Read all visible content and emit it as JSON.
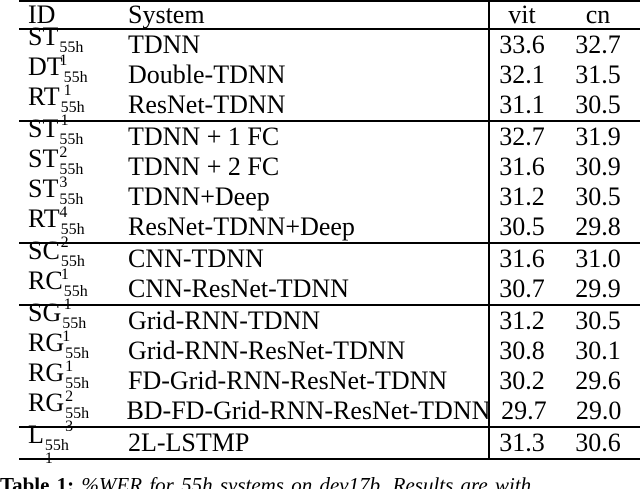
{
  "table": {
    "headers": {
      "id": "ID",
      "system": "System",
      "vit": "vit",
      "cn": "cn"
    },
    "groups": [
      {
        "rows": [
          {
            "id_base": "ST",
            "id_sup": "55h",
            "id_sub": "1",
            "system": "TDNN",
            "vit": "33.6",
            "cn": "32.7"
          },
          {
            "id_base": "DT",
            "id_sup": "55h",
            "id_sub": "1",
            "system": "Double-TDNN",
            "vit": "32.1",
            "cn": "31.5"
          },
          {
            "id_base": "RT",
            "id_sup": "55h",
            "id_sub": "1",
            "system": "ResNet-TDNN",
            "vit": "31.1",
            "cn": "30.5"
          }
        ]
      },
      {
        "rows": [
          {
            "id_base": "ST",
            "id_sup": "55h",
            "id_sub": "2",
            "system": "TDNN + 1 FC",
            "vit": "32.7",
            "cn": "31.9"
          },
          {
            "id_base": "ST",
            "id_sup": "55h",
            "id_sub": "3",
            "system": "TDNN + 2 FC",
            "vit": "31.6",
            "cn": "30.9"
          },
          {
            "id_base": "ST",
            "id_sup": "55h",
            "id_sub": "4",
            "system": "TDNN+Deep",
            "vit": "31.2",
            "cn": "30.5"
          },
          {
            "id_base": "RT",
            "id_sup": "55h",
            "id_sub": "2",
            "system": "ResNet-TDNN+Deep",
            "vit": "30.5",
            "cn": "29.8"
          }
        ]
      },
      {
        "rows": [
          {
            "id_base": "SC",
            "id_sup": "55h",
            "id_sub": "1",
            "system": "CNN-TDNN",
            "vit": "31.6",
            "cn": "31.0"
          },
          {
            "id_base": "RC",
            "id_sup": "55h",
            "id_sub": "1",
            "system": "CNN-ResNet-TDNN",
            "vit": "30.7",
            "cn": "29.9"
          }
        ]
      },
      {
        "rows": [
          {
            "id_base": "SG",
            "id_sup": "55h",
            "id_sub": "1",
            "system": "Grid-RNN-TDNN",
            "vit": "31.2",
            "cn": "30.5"
          },
          {
            "id_base": "RG",
            "id_sup": "55h",
            "id_sub": "1",
            "system": "Grid-RNN-ResNet-TDNN",
            "vit": "30.8",
            "cn": "30.1"
          },
          {
            "id_base": "RG",
            "id_sup": "55h",
            "id_sub": "2",
            "system": "FD-Grid-RNN-ResNet-TDNN",
            "vit": "30.2",
            "cn": "29.6"
          },
          {
            "id_base": "RG",
            "id_sup": "55h",
            "id_sub": "3",
            "system": "BD-FD-Grid-RNN-ResNet-TDNN",
            "vit": "29.7",
            "cn": "29.0"
          }
        ]
      },
      {
        "rows": [
          {
            "id_base": "L",
            "id_sup": "55h",
            "id_sub": "1",
            "system": "2L-LSTMP",
            "vit": "31.3",
            "cn": "30.6"
          }
        ]
      }
    ]
  },
  "caption": {
    "label": "Table 1:",
    "text": "%WER for 55h systems on dev17b. Results are with"
  },
  "colors": {
    "text": "#000000",
    "rule": "#000000",
    "background": "#ffffff"
  }
}
